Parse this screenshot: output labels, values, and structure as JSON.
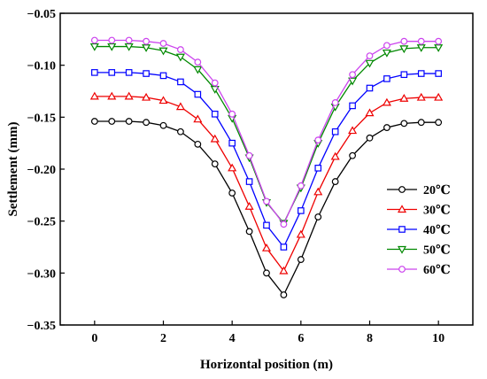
{
  "chart_data": {
    "type": "line",
    "title": "",
    "xlabel": "Horizontal position (m)",
    "ylabel": "Settlement (mm)",
    "xlim": [
      -1,
      11
    ],
    "ylim": [
      -0.35,
      -0.05
    ],
    "xticks": [
      0,
      2,
      4,
      6,
      8,
      10
    ],
    "yticks": [
      -0.05,
      -0.1,
      -0.15,
      -0.2,
      -0.25,
      -0.3,
      -0.35
    ],
    "xtick_labels": [
      "0",
      "2",
      "4",
      "6",
      "8",
      "10"
    ],
    "ytick_labels": [
      "−0.05",
      "−0.10",
      "−0.15",
      "−0.20",
      "−0.25",
      "−0.30",
      "−0.35"
    ],
    "grid": false,
    "legend_position": "right",
    "x": [
      0,
      0.5,
      1,
      1.5,
      2,
      2.5,
      3,
      3.5,
      4,
      4.5,
      5,
      5.5,
      6,
      6.5,
      7,
      7.5,
      8,
      8.5,
      9,
      9.5,
      10
    ],
    "series": [
      {
        "name": "20℃",
        "color": "#000000",
        "marker": "circle",
        "values": [
          -0.154,
          -0.154,
          -0.154,
          -0.155,
          -0.158,
          -0.164,
          -0.176,
          -0.195,
          -0.223,
          -0.26,
          -0.3,
          -0.321,
          -0.287,
          -0.246,
          -0.212,
          -0.187,
          -0.17,
          -0.16,
          -0.156,
          -0.155,
          -0.155
        ]
      },
      {
        "name": "30℃",
        "color": "#ee0000",
        "marker": "triangle-up",
        "values": [
          -0.13,
          -0.13,
          -0.13,
          -0.131,
          -0.134,
          -0.14,
          -0.152,
          -0.171,
          -0.199,
          -0.236,
          -0.276,
          -0.298,
          -0.263,
          -0.222,
          -0.188,
          -0.163,
          -0.146,
          -0.136,
          -0.132,
          -0.131,
          -0.131
        ]
      },
      {
        "name": "40℃",
        "color": "#0000ff",
        "marker": "square",
        "values": [
          -0.107,
          -0.107,
          -0.107,
          -0.108,
          -0.11,
          -0.116,
          -0.128,
          -0.147,
          -0.175,
          -0.212,
          -0.254,
          -0.275,
          -0.24,
          -0.199,
          -0.164,
          -0.139,
          -0.122,
          -0.113,
          -0.109,
          -0.108,
          -0.108
        ]
      },
      {
        "name": "50℃",
        "color": "#008800",
        "marker": "triangle-down",
        "values": [
          -0.082,
          -0.082,
          -0.082,
          -0.083,
          -0.086,
          -0.092,
          -0.104,
          -0.123,
          -0.151,
          -0.189,
          -0.232,
          -0.252,
          -0.218,
          -0.175,
          -0.14,
          -0.115,
          -0.098,
          -0.088,
          -0.084,
          -0.083,
          -0.083
        ]
      },
      {
        "name": "60℃",
        "color": "#cc44ee",
        "marker": "circle",
        "values": [
          -0.076,
          -0.076,
          -0.076,
          -0.077,
          -0.079,
          -0.085,
          -0.097,
          -0.117,
          -0.147,
          -0.187,
          -0.231,
          -0.253,
          -0.216,
          -0.172,
          -0.136,
          -0.109,
          -0.091,
          -0.081,
          -0.077,
          -0.077,
          -0.077
        ]
      }
    ]
  }
}
